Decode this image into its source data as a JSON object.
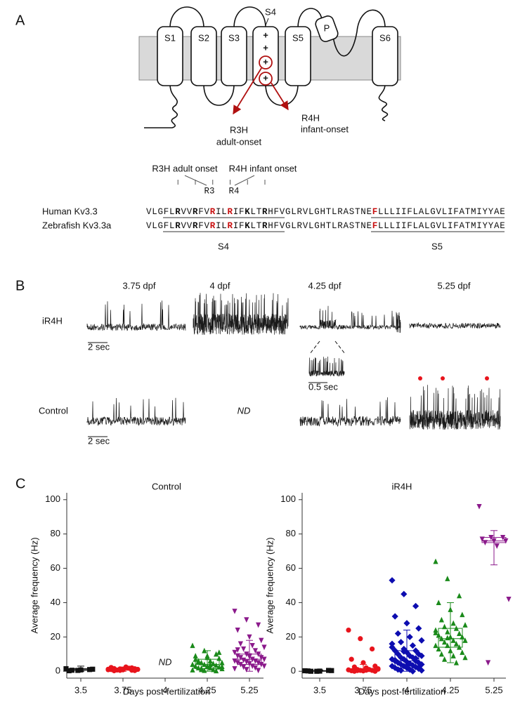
{
  "panel_labels": [
    "A",
    "B",
    "C"
  ],
  "topology": {
    "segments": [
      "S1",
      "S2",
      "S3",
      "S4",
      "S5",
      "S6"
    ],
    "pore": "P",
    "s4_label": "S4",
    "charges": [
      "+",
      "+",
      "+",
      "+"
    ],
    "mut_r3": [
      "R3H",
      "adult-onset"
    ],
    "mut_r4": [
      "R4H",
      "infant-onset"
    ]
  },
  "alignment": {
    "annot_r3": "R3H adult onset",
    "annot_r4": "R4H infant onset",
    "pos_r3": "R3",
    "pos_r4": "R4",
    "rows": [
      {
        "name": "Human Kv3.3",
        "seq": "VLGFLRVVRFVRILRIFKLTRHFVGLRVLGHTLRASTNEFLLLIIFLALGVLIFATMIYYAE"
      },
      {
        "name": "Zebrafish Kv3.3a",
        "seq": "VLGFLRVVRFVRILRIFKLTRHFVGLRVLGHTLRASTNEFLLLIIFLALGVLIFATMIYYAE"
      }
    ],
    "s4": "S4",
    "s5": "S5"
  },
  "recordings": {
    "stages": [
      "3.75 dpf",
      "4 dpf",
      "4.25 dpf",
      "5.25 dpf"
    ],
    "rows": [
      "iR4H",
      "Control"
    ],
    "nd": "ND",
    "scale_main": "2 sec",
    "scale_inset": "0.5 sec",
    "scale_control": "2 sec"
  },
  "chart_data": [
    {
      "type": "scatter-box",
      "title": "Control",
      "xlabel": "Days post-fertilization",
      "ylabel": "Average frequency (Hz)",
      "categories": [
        "3.5",
        "3.75",
        "4",
        "4.25",
        "5.25"
      ],
      "colors": [
        "#111111",
        "#e8141c",
        "#0d0db0",
        "#1a8a1a",
        "#8b1a8b"
      ],
      "markers": [
        "square",
        "circle",
        "diamond",
        "triangle",
        "triangle-down"
      ],
      "annotation": "ND",
      "ylim": [
        -4,
        104
      ],
      "yticks": [
        0,
        20,
        40,
        60,
        80,
        100
      ],
      "points": [
        [
          1.5,
          0.5,
          1,
          0.3,
          0.8,
          1.2,
          0.6
        ],
        [
          1.2,
          0.5,
          2,
          1,
          0.8,
          1.5,
          0.3,
          2.5,
          1.1,
          0.7,
          1.8,
          0.9,
          1.4,
          0.6,
          2.2,
          1,
          0.4,
          1.6
        ],
        null,
        [
          15,
          12,
          10,
          9,
          8,
          7.5,
          6,
          6,
          5,
          5,
          4.5,
          4,
          4,
          3.5,
          3,
          3,
          2.5,
          2,
          2,
          1.5,
          1,
          1,
          0.8,
          0.5,
          0.3,
          7,
          9,
          11,
          5.5,
          3.8,
          2.8,
          1.8
        ],
        [
          35,
          30,
          27,
          24,
          20,
          18,
          16,
          15,
          14,
          13,
          12,
          11,
          10,
          10,
          9,
          9,
          8,
          8,
          7,
          7,
          6.5,
          6,
          6,
          5.5,
          5,
          5,
          4.5,
          4,
          4,
          3,
          3,
          2.5,
          2,
          1.5,
          1,
          0.5,
          12.5,
          8.5
        ]
      ],
      "boxes": [
        {
          "low": 0,
          "q1": 0.5,
          "median": 1,
          "q3": 1.5,
          "high": 3
        },
        {
          "low": 0,
          "q1": 0.6,
          "median": 1,
          "q3": 1.6,
          "high": 2.5
        },
        null,
        {
          "low": 0,
          "q1": 1.5,
          "median": 4,
          "q3": 7,
          "high": 12
        },
        {
          "low": 0,
          "q1": 4,
          "median": 7,
          "q3": 10,
          "high": 18
        }
      ]
    },
    {
      "type": "scatter-box",
      "title": "iR4H",
      "xlabel": "Days post-fertilization",
      "ylabel": "Average frequency (Hz)",
      "categories": [
        "3.5",
        "3.75",
        "4",
        "4.25",
        "5.25"
      ],
      "colors": [
        "#111111",
        "#e8141c",
        "#0d0db0",
        "#1a8a1a",
        "#8b1a8b"
      ],
      "markers": [
        "square",
        "circle",
        "diamond",
        "triangle",
        "triangle-down"
      ],
      "ylim": [
        -4,
        104
      ],
      "yticks": [
        0,
        20,
        40,
        60,
        80,
        100
      ],
      "points": [
        [
          0.3,
          0,
          0.5,
          0.2,
          0.1,
          0.4,
          0
        ],
        [
          24,
          19,
          13,
          7,
          5,
          3,
          2.5,
          2,
          1.5,
          1,
          1,
          0.8,
          0.5,
          0.5,
          0.3,
          0.2,
          0,
          0,
          0.6,
          1.2,
          0.4
        ],
        [
          53,
          45,
          38,
          32,
          28,
          25,
          22,
          20,
          18,
          17,
          15,
          14,
          13,
          12,
          12,
          11,
          10,
          10,
          9,
          9,
          8,
          8,
          7,
          7,
          6,
          6,
          5.5,
          5,
          5,
          4.5,
          4,
          4,
          3.5,
          3,
          3,
          2.5,
          2,
          2,
          1.5,
          1,
          1,
          0.5,
          0.5,
          0,
          16,
          11.5,
          7.5,
          6.5,
          3.2,
          2.2
        ],
        [
          64,
          54,
          44,
          40,
          36,
          33,
          30,
          28,
          27,
          26,
          25,
          24,
          23,
          22,
          21,
          20,
          20,
          19,
          18,
          18,
          17,
          16,
          15,
          15,
          14,
          13,
          12,
          11,
          10,
          9,
          8,
          7,
          5,
          22.5,
          19.5
        ],
        [
          96,
          78,
          78,
          77,
          76,
          76,
          75,
          73,
          42,
          5
        ]
      ],
      "boxes": [
        {
          "low": 0,
          "q1": 0,
          "median": 0.2,
          "q3": 0.4,
          "high": 0.8
        },
        {
          "low": 0,
          "q1": 0,
          "median": 0.5,
          "q3": 1.5,
          "high": 4
        },
        {
          "low": 0,
          "q1": 2,
          "median": 6,
          "q3": 12,
          "high": 24
        },
        {
          "low": 5,
          "q1": 14,
          "median": 19,
          "q3": 25,
          "high": 40
        },
        {
          "low": 62,
          "q1": 75,
          "median": 76,
          "q3": 78,
          "high": 82
        }
      ]
    }
  ]
}
